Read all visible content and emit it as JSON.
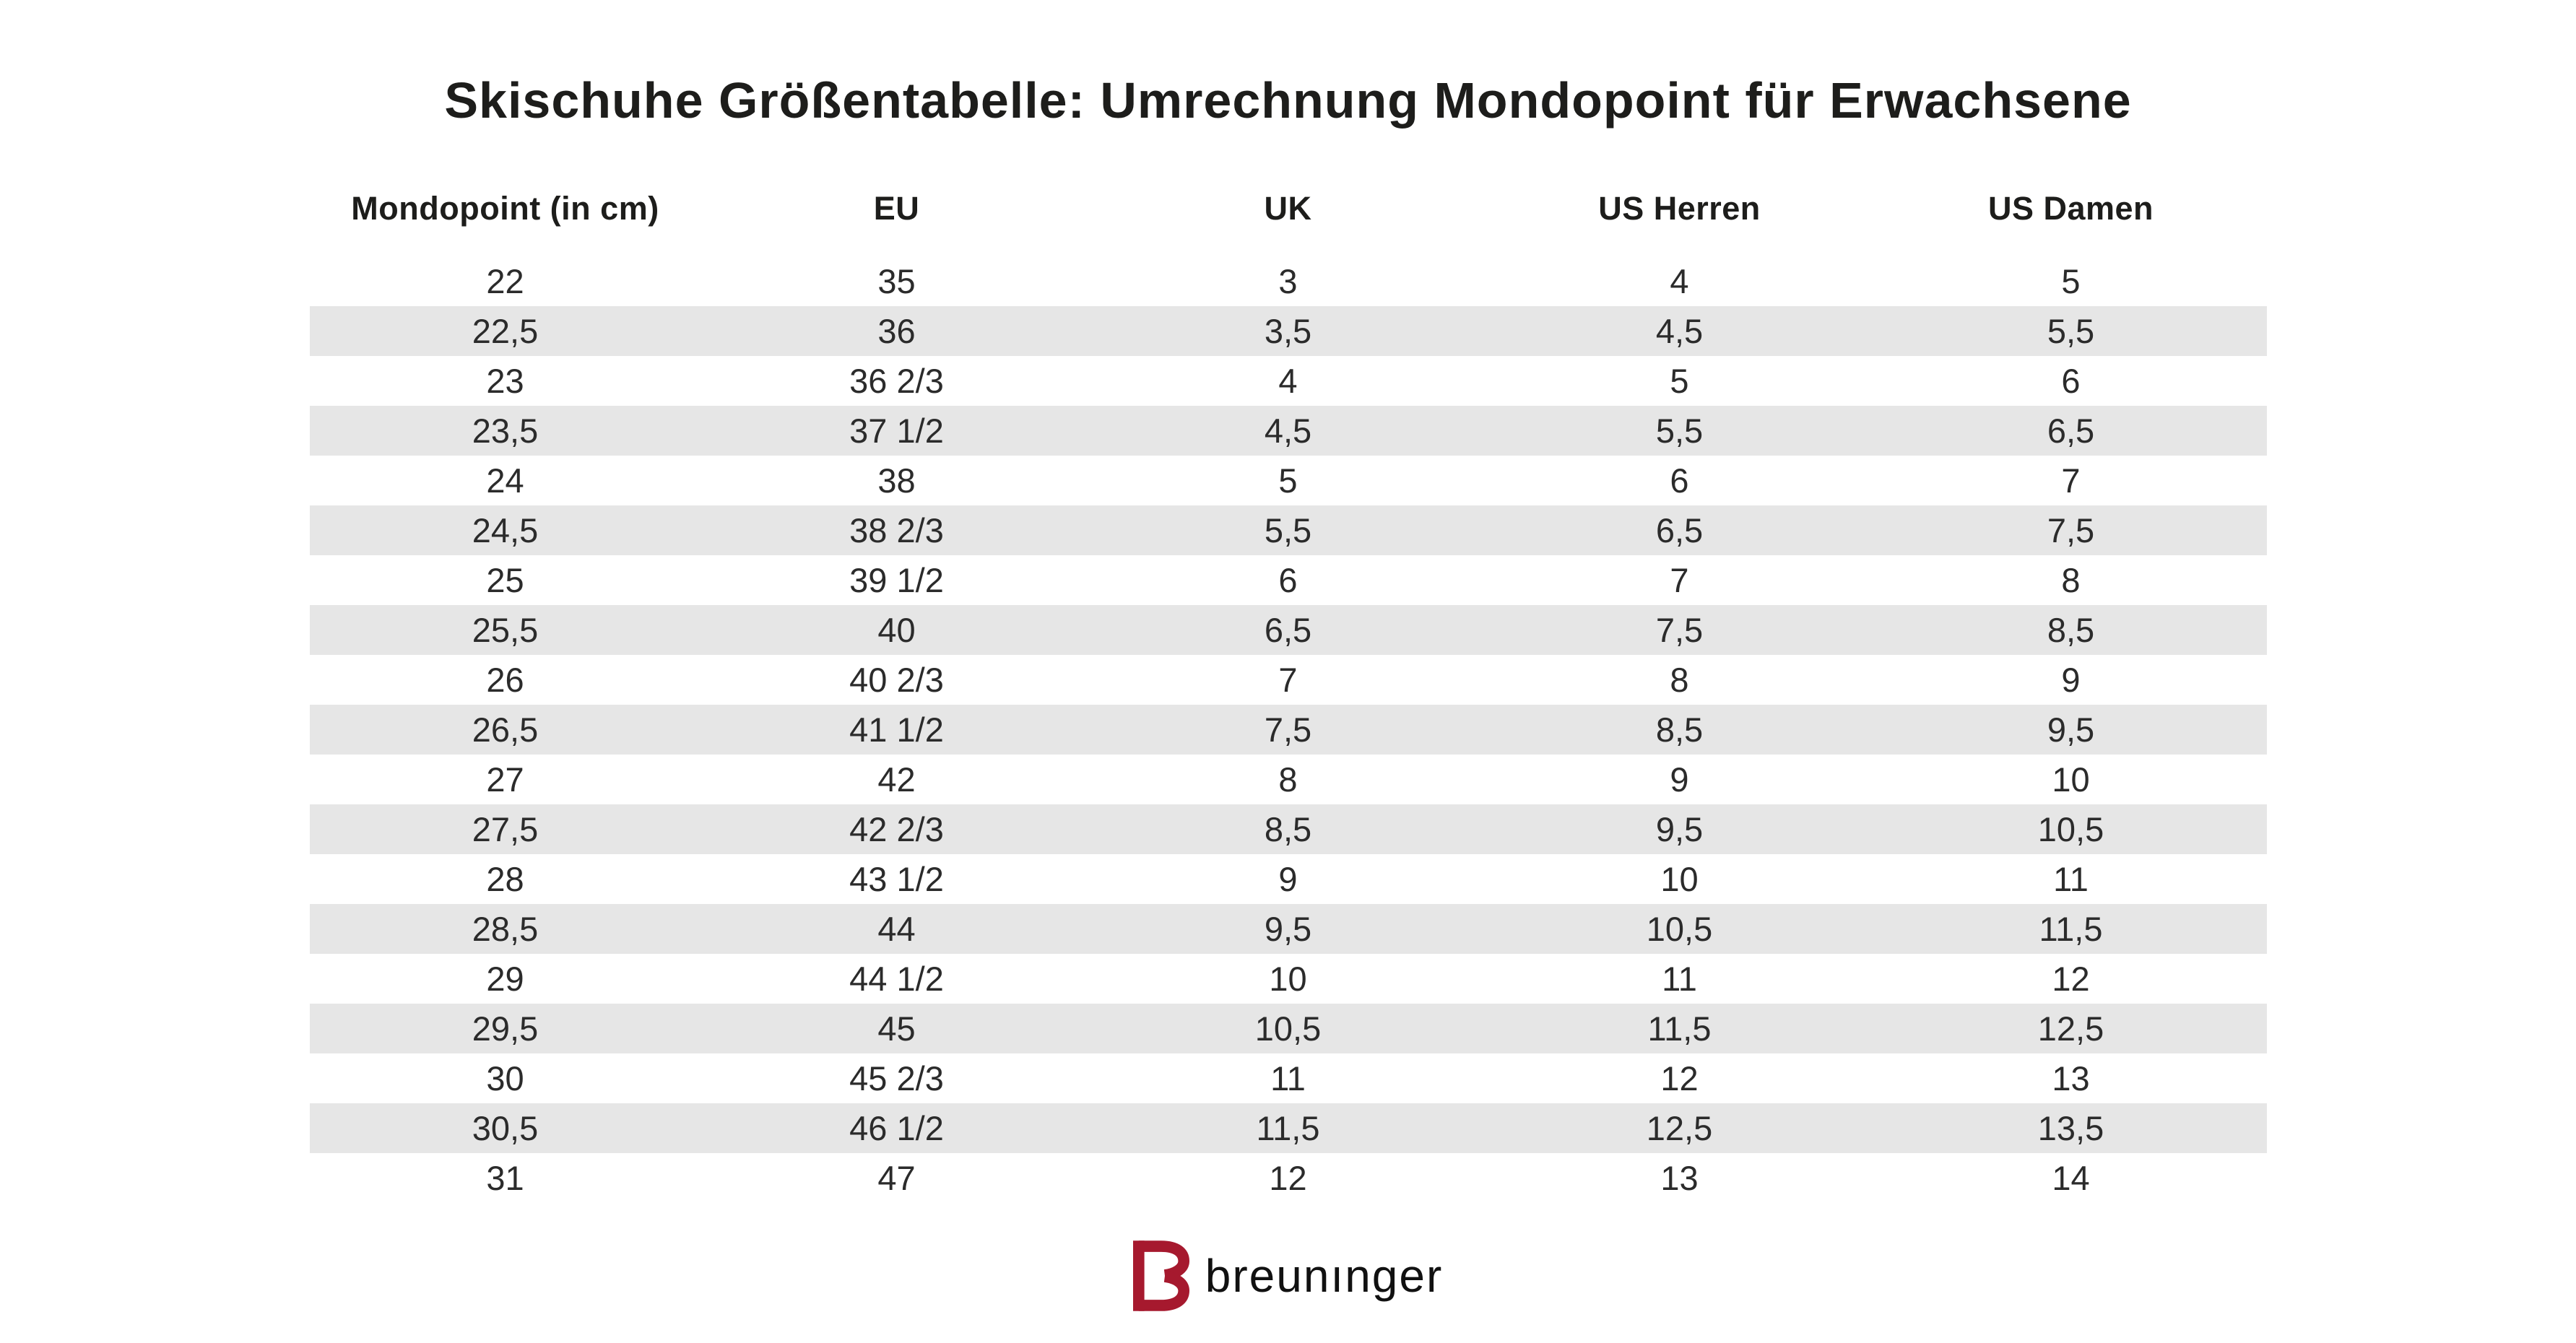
{
  "page": {
    "title": "Skischuhe Größentabelle: Umrechnung Mondopoint für Erwachsene"
  },
  "table": {
    "columns": [
      "Mondopoint (in cm)",
      "EU",
      "UK",
      "US Herren",
      "US Damen"
    ],
    "rows": [
      [
        "22",
        "35",
        "3",
        "4",
        "5"
      ],
      [
        "22,5",
        "36",
        "3,5",
        "4,5",
        "5,5"
      ],
      [
        "23",
        "36 2/3",
        "4",
        "5",
        "6"
      ],
      [
        "23,5",
        "37 1/2",
        "4,5",
        "5,5",
        "6,5"
      ],
      [
        "24",
        "38",
        "5",
        "6",
        "7"
      ],
      [
        "24,5",
        "38 2/3",
        "5,5",
        "6,5",
        "7,5"
      ],
      [
        "25",
        "39 1/2",
        "6",
        "7",
        "8"
      ],
      [
        "25,5",
        "40",
        "6,5",
        "7,5",
        "8,5"
      ],
      [
        "26",
        "40 2/3",
        "7",
        "8",
        "9"
      ],
      [
        "26,5",
        "41 1/2",
        "7,5",
        "8,5",
        "9,5"
      ],
      [
        "27",
        "42",
        "8",
        "9",
        "10"
      ],
      [
        "27,5",
        "42 2/3",
        "8,5",
        "9,5",
        "10,5"
      ],
      [
        "28",
        "43 1/2",
        "9",
        "10",
        "11"
      ],
      [
        "28,5",
        "44",
        "9,5",
        "10,5",
        "11,5"
      ],
      [
        "29",
        "44 1/2",
        "10",
        "11",
        "12"
      ],
      [
        "29,5",
        "45",
        "10,5",
        "11,5",
        "12,5"
      ],
      [
        "30",
        "45 2/3",
        "11",
        "12",
        "13"
      ],
      [
        "30,5",
        "46 1/2",
        "11,5",
        "12,5",
        "13,5"
      ],
      [
        "31",
        "47",
        "12",
        "13",
        "14"
      ]
    ]
  },
  "footer": {
    "brand_wordmark": "breunınger"
  },
  "colors": {
    "brand_red": "#A6192E",
    "row_stripe": "#E6E6E6",
    "text": "#1D1D1B"
  }
}
